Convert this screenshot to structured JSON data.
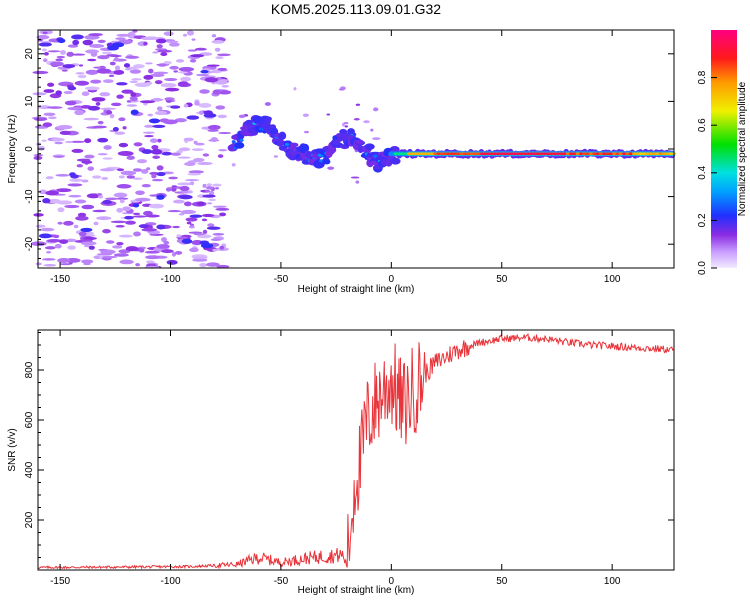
{
  "title": "KOM5.2025.113.09.01.G32",
  "chart_data": [
    {
      "type": "heatmap",
      "xlabel": "Height of straight line (km)",
      "ylabel": "Frequency (Hz)",
      "xlim": [
        -160,
        128
      ],
      "ylim": [
        -25,
        25
      ],
      "xticks": [
        -150,
        -100,
        -50,
        0,
        50,
        100
      ],
      "yticks": [
        -20,
        -10,
        0,
        10,
        20
      ],
      "colorbar": {
        "label": "Normalized spectral amplitude",
        "range": [
          0,
          1
        ],
        "ticks": [
          "0.0",
          "0.2",
          "0.4",
          "0.6",
          "0.8"
        ],
        "colormap": "rainbow (light purple → violet → blue → cyan → green → yellow → orange → red → magenta)"
      },
      "features": {
        "noise_region": {
          "x": [
            -160,
            -75
          ],
          "freq": [
            -25,
            25
          ],
          "amplitude": "0.05-0.2"
        },
        "emerging_signal": {
          "x": [
            -75,
            0
          ],
          "freq": [
            -5,
            7
          ],
          "amplitude": "0.15-0.35"
        },
        "carrier_line": {
          "x": [
            0,
            128
          ],
          "freq": -1,
          "amplitude": "0.7-1.0"
        }
      }
    },
    {
      "type": "line",
      "xlabel": "Height of straight line (km)",
      "ylabel": "SNR (v/v)",
      "xlim": [
        -160,
        128
      ],
      "ylim": [
        0,
        960
      ],
      "xticks": [
        -150,
        -100,
        -50,
        0,
        50,
        100
      ],
      "yticks": [
        200,
        400,
        600,
        800
      ],
      "color": "#e8343a",
      "series_points": [
        [
          -160,
          10
        ],
        [
          -120,
          12
        ],
        [
          -90,
          14
        ],
        [
          -80,
          18
        ],
        [
          -70,
          22
        ],
        [
          -60,
          50
        ],
        [
          -50,
          30
        ],
        [
          -40,
          45
        ],
        [
          -30,
          55
        ],
        [
          -22,
          60
        ],
        [
          -20,
          15
        ],
        [
          -18,
          220
        ],
        [
          -16,
          400
        ],
        [
          -14,
          420
        ],
        [
          -12,
          560
        ],
        [
          -10,
          620
        ],
        [
          -5,
          700
        ],
        [
          0,
          760
        ],
        [
          5,
          650
        ],
        [
          10,
          720
        ],
        [
          15,
          780
        ],
        [
          20,
          830
        ],
        [
          30,
          880
        ],
        [
          40,
          910
        ],
        [
          50,
          925
        ],
        [
          60,
          930
        ],
        [
          70,
          925
        ],
        [
          80,
          910
        ],
        [
          90,
          900
        ],
        [
          100,
          895
        ],
        [
          110,
          890
        ],
        [
          120,
          885
        ],
        [
          128,
          880
        ]
      ]
    }
  ]
}
